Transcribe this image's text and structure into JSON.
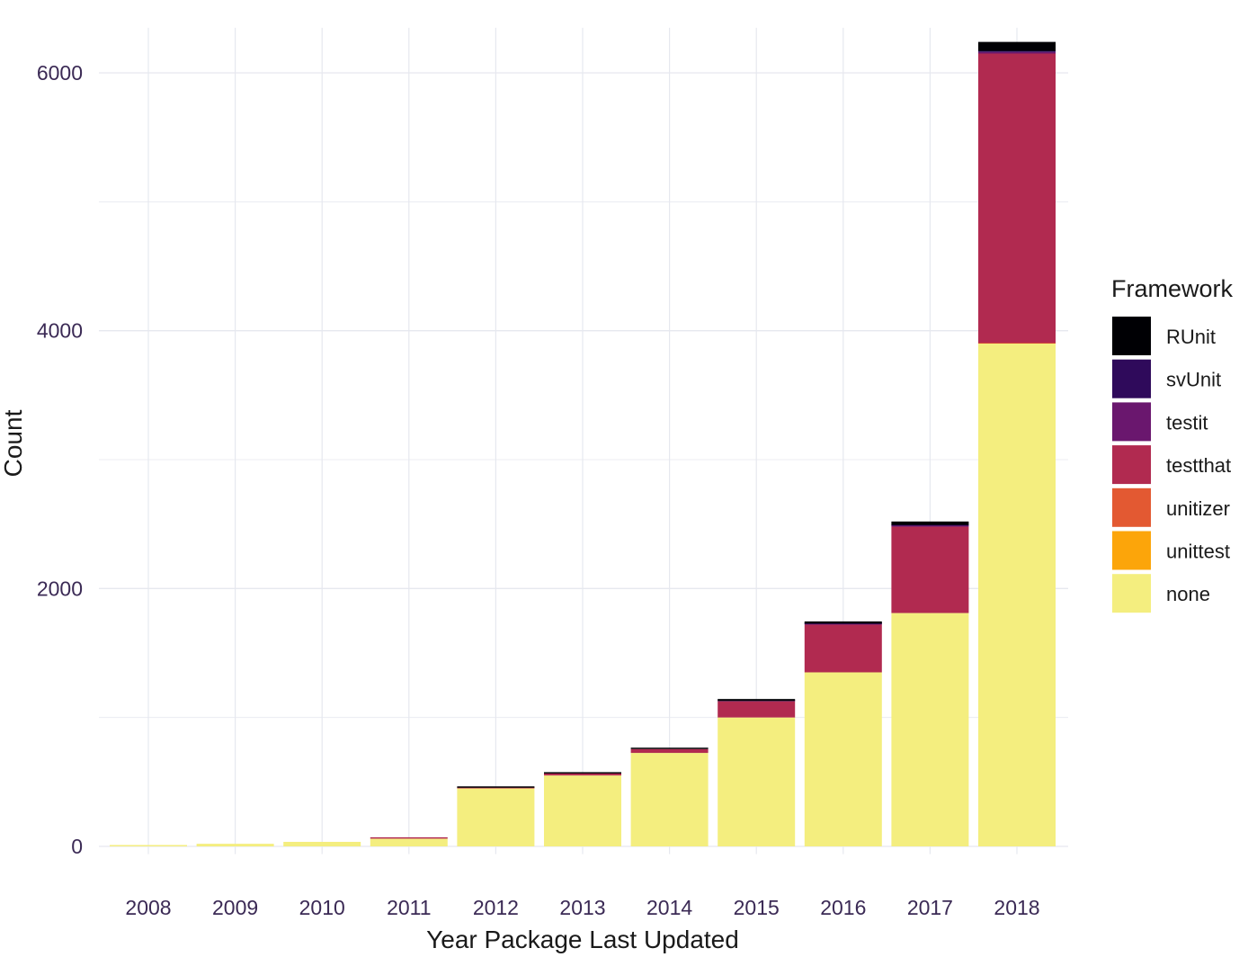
{
  "chart_data": {
    "type": "bar",
    "stacked": true,
    "title": "",
    "xlabel": "Year Package Last Updated",
    "ylabel": "Count",
    "ylim": [
      -60,
      6350
    ],
    "yticks": [
      0,
      2000,
      4000,
      6000
    ],
    "grid": true,
    "legend_position": "right",
    "legend_title": "Framework",
    "categories": [
      "2008",
      "2009",
      "2010",
      "2011",
      "2012",
      "2013",
      "2014",
      "2015",
      "2016",
      "2017",
      "2018"
    ],
    "series": [
      {
        "name": "none",
        "color": "#F4EE7F",
        "values": [
          8,
          20,
          35,
          60,
          450,
          550,
          725,
          1000,
          1350,
          1810,
          3900
        ]
      },
      {
        "name": "unittest",
        "color": "#FCA50A",
        "values": [
          0,
          0,
          0,
          0,
          0,
          0,
          0,
          0,
          0,
          0,
          0
        ]
      },
      {
        "name": "unitizer",
        "color": "#E35932",
        "values": [
          0,
          0,
          0,
          0,
          0,
          0,
          0,
          0,
          0,
          0,
          5
        ]
      },
      {
        "name": "testthat",
        "color": "#B12A50",
        "values": [
          0,
          0,
          0,
          2,
          5,
          15,
          30,
          125,
          370,
          670,
          2245
        ]
      },
      {
        "name": "testit",
        "color": "#6A176E",
        "values": [
          0,
          0,
          0,
          0,
          0,
          0,
          0,
          3,
          5,
          8,
          12
        ]
      },
      {
        "name": "svUnit",
        "color": "#2F0A5B",
        "values": [
          0,
          0,
          0,
          0,
          0,
          0,
          0,
          0,
          3,
          5,
          8
        ]
      },
      {
        "name": "RUnit",
        "color": "#000004",
        "values": [
          0,
          0,
          0,
          0,
          3,
          5,
          10,
          15,
          17,
          27,
          70
        ]
      }
    ],
    "legend_order": [
      "RUnit",
      "svUnit",
      "testit",
      "testthat",
      "unitizer",
      "unittest",
      "none"
    ]
  }
}
